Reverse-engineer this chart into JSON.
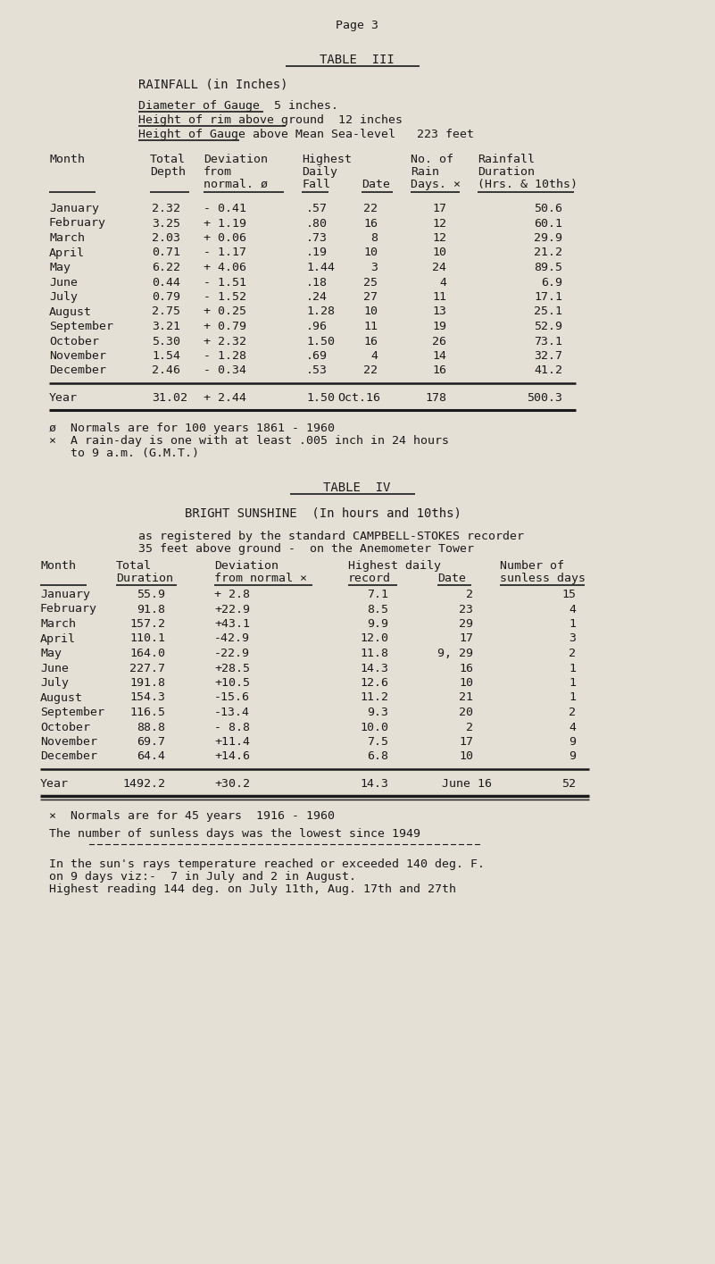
{
  "bg_color": "#e5e0d5",
  "text_color": "#1a1a1a",
  "page_header": "Page 3",
  "table3_title": "TABLE  III",
  "table3_subtitle": "RAINFALL (in Inches)",
  "table3_gauge_lines": [
    "Diameter of Gauge  5 inches.",
    "Height of rim above ground  12 inches",
    "Height of Gauge above Mean Sea-level   223 feet"
  ],
  "table3_months": [
    "January",
    "February",
    "March",
    "April",
    "May",
    "June",
    "July",
    "August",
    "September",
    "October",
    "November",
    "December"
  ],
  "table3_total_depth": [
    "2.32",
    "3.25",
    "2.03",
    "0.71",
    "6.22",
    "0.44",
    "0.79",
    "2.75",
    "3.21",
    "5.30",
    "1.54",
    "2.46"
  ],
  "table3_deviation": [
    "- 0.41",
    "+ 1.19",
    "+ 0.06",
    "- 1.17",
    "+ 4.06",
    "- 1.51",
    "- 1.52",
    "+ 0.25",
    "+ 0.79",
    "+ 2.32",
    "- 1.28",
    "- 0.34"
  ],
  "table3_highest_fall": [
    ".57",
    ".80",
    ".73",
    ".19",
    "1.44",
    ".18",
    ".24",
    "1.28",
    ".96",
    "1.50",
    ".69",
    ".53"
  ],
  "table3_date": [
    "22",
    "16",
    "8",
    "10",
    "3",
    "25",
    "27",
    "10",
    "11",
    "16",
    "4",
    "22"
  ],
  "table3_rain_days": [
    "17",
    "12",
    "12",
    "10",
    "24",
    "4",
    "11",
    "13",
    "19",
    "26",
    "14",
    "16"
  ],
  "table3_duration": [
    "50.6",
    "60.1",
    "29.9",
    "21.2",
    "89.5",
    "6.9",
    "17.1",
    "25.1",
    "52.9",
    "73.1",
    "32.7",
    "41.2"
  ],
  "table3_year_row": [
    "Year",
    "31.02",
    "+ 2.44",
    "1.50",
    "Oct.16",
    "178",
    "500.3"
  ],
  "table3_fn1": "ø  Normals are for 100 years 1861 - 1960",
  "table3_fn2": "×  A rain-day is one with at least .005 inch in 24 hours",
  "table3_fn3": "   to 9 a.m. (G.M.T.)",
  "table4_title": "TABLE  IV",
  "table4_subtitle": "BRIGHT SUNSHINE  (In hours and 10ths)",
  "table4_info1": "as registered by the standard CAMPBELL-STOKES recorder",
  "table4_info2": "35 feet above ground -  on the Anemometer Tower",
  "table4_months": [
    "January",
    "February",
    "March",
    "April",
    "May",
    "June",
    "July",
    "August",
    "September",
    "October",
    "November",
    "December"
  ],
  "table4_total": [
    "55.9",
    "91.8",
    "157.2",
    "110.1",
    "164.0",
    "227.7",
    "191.8",
    "154.3",
    "116.5",
    "88.8",
    "69.7",
    "64.4"
  ],
  "table4_deviation": [
    "+ 2.8",
    "+22.9",
    "+43.1",
    "-42.9",
    "-22.9",
    "+28.5",
    "+10.5",
    "-15.6",
    "-13.4",
    "- 8.8",
    "+11.4",
    "+14.6"
  ],
  "table4_highest": [
    "7.1",
    "8.5",
    "9.9",
    "12.0",
    "11.8",
    "14.3",
    "12.6",
    "11.2",
    "9.3",
    "10.0",
    "7.5",
    "6.8"
  ],
  "table4_date": [
    "2",
    "23",
    "29",
    "17",
    "9, 29",
    "16",
    "10",
    "21",
    "20",
    "2",
    "17",
    "10"
  ],
  "table4_sunless": [
    "15",
    "4",
    "1",
    "3",
    "2",
    "1",
    "1",
    "1",
    "2",
    "4",
    "9",
    "9"
  ],
  "table4_year_row": [
    "Year",
    "1492.2",
    "+30.2",
    "14.3",
    "June 16",
    "52"
  ],
  "table4_fn1": "×  Normals are for 45 years  1916 - 1960",
  "table4_fn2": "The number of sunless days was the lowest since 1949",
  "table4_fn3": "In the sun's rays temperature reached or exceeded 140 deg. F.",
  "table4_fn4": "on 9 days viz:-  7 in July and 2 in August.",
  "table4_fn5": "Highest reading 144 deg. on July 11th, Aug. 17th and 27th"
}
